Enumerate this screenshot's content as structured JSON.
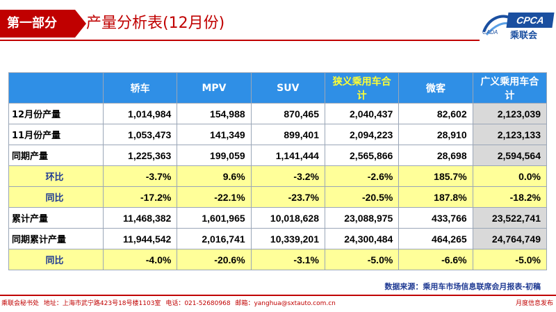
{
  "header": {
    "section_label": "第一部分",
    "title": "产量分析表(12月份)",
    "logo_text": "CPCA",
    "logo_cn": "乘联会",
    "logo_small": "CADA"
  },
  "table": {
    "columns": [
      "",
      "轿车",
      "MPV",
      "SUV",
      "狭义乘用车合计",
      "微客",
      "广义乘用车合计"
    ],
    "rows": [
      {
        "label": "12月份产量",
        "values": [
          "1,014,984",
          "154,988",
          "870,465",
          "2,040,437",
          "82,602",
          "2,123,039"
        ]
      },
      {
        "label": "11月份产量",
        "values": [
          "1,053,473",
          "141,349",
          "899,401",
          "2,094,223",
          "28,910",
          "2,123,133"
        ]
      },
      {
        "label": "同期产量",
        "values": [
          "1,225,363",
          "199,059",
          "1,141,444",
          "2,565,866",
          "28,698",
          "2,594,564"
        ]
      },
      {
        "label": "环比",
        "values": [
          "-3.7%",
          "9.6%",
          "-3.2%",
          "-2.6%",
          "185.7%",
          "0.0%"
        ]
      },
      {
        "label": "同比",
        "values": [
          "-17.2%",
          "-22.1%",
          "-23.7%",
          "-20.5%",
          "187.8%",
          "-18.2%"
        ]
      },
      {
        "label": "累计产量",
        "values": [
          "11,468,382",
          "1,601,965",
          "10,018,628",
          "23,088,975",
          "433,766",
          "23,522,741"
        ]
      },
      {
        "label": "同期累计产量",
        "values": [
          "11,944,542",
          "2,016,741",
          "10,339,201",
          "24,300,484",
          "464,265",
          "24,764,749"
        ]
      },
      {
        "label": "同比",
        "values": [
          "-4.0%",
          "-20.6%",
          "-3.1%",
          "-5.0%",
          "-6.6%",
          "-5.0%"
        ]
      }
    ]
  },
  "source_note": "数据来源：乘用车市场信息联席会月报表-初稿",
  "footer": {
    "org": "乘联会秘书处",
    "address": "地址：上海市武宁路423号18号楼1103室",
    "phone": "电话：021-52680968",
    "email": "邮箱：yanghua@sxtauto.com.cn",
    "right": "月度信息发布"
  },
  "colors": {
    "brand_red": "#c00000",
    "header_blue": "#2f8fe6",
    "highlight_yellow": "#ffff99"
  }
}
